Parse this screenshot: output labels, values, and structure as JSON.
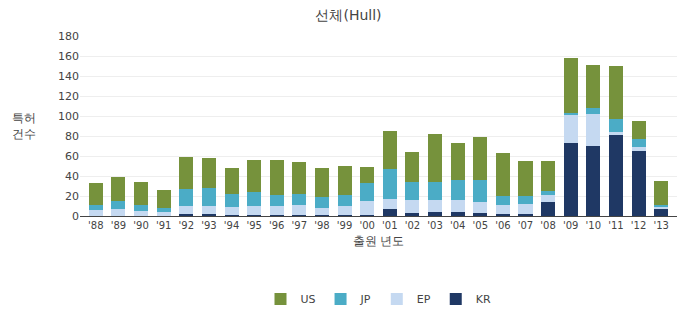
{
  "chart_data": {
    "type": "bar",
    "stacked": true,
    "title": "선체(Hull)",
    "xlabel": "출원 년도",
    "ylabel": "특허\n건수",
    "categories": [
      "'88",
      "'89",
      "'90",
      "'91",
      "'92",
      "'93",
      "'94",
      "'95",
      "'96",
      "'97",
      "'98",
      "'99",
      "'00",
      "'01",
      "'02",
      "'03",
      "'04",
      "'05",
      "'06",
      "'07",
      "'08",
      "'09",
      "'10",
      "'11",
      "'12",
      "'13"
    ],
    "series": [
      {
        "name": "KR",
        "color": "#1F3864",
        "values": [
          0,
          0,
          0,
          0,
          2,
          2,
          1,
          1,
          1,
          1,
          1,
          1,
          1,
          7,
          3,
          4,
          4,
          3,
          2,
          2,
          14,
          73,
          70,
          81,
          65,
          7
        ]
      },
      {
        "name": "EP",
        "color": "#C5D9F1",
        "values": [
          6,
          7,
          5,
          4,
          8,
          8,
          8,
          9,
          9,
          10,
          7,
          9,
          14,
          10,
          13,
          12,
          12,
          11,
          9,
          10,
          7,
          28,
          32,
          3,
          4,
          2
        ]
      },
      {
        "name": "JP",
        "color": "#4BACC6",
        "values": [
          5,
          8,
          6,
          4,
          17,
          18,
          13,
          14,
          11,
          11,
          11,
          11,
          18,
          30,
          18,
          18,
          20,
          22,
          9,
          8,
          4,
          2,
          6,
          13,
          8,
          2
        ]
      },
      {
        "name": "US",
        "color": "#76923C",
        "values": [
          22,
          24,
          23,
          18,
          32,
          30,
          26,
          32,
          35,
          32,
          29,
          29,
          16,
          38,
          30,
          48,
          37,
          43,
          43,
          35,
          30,
          55,
          43,
          53,
          18,
          24
        ]
      }
    ],
    "ylim": [
      0,
      180
    ],
    "yticks": [
      0,
      20,
      40,
      60,
      80,
      100,
      120,
      140,
      160,
      180
    ],
    "grid": true,
    "legend": "bottom"
  }
}
